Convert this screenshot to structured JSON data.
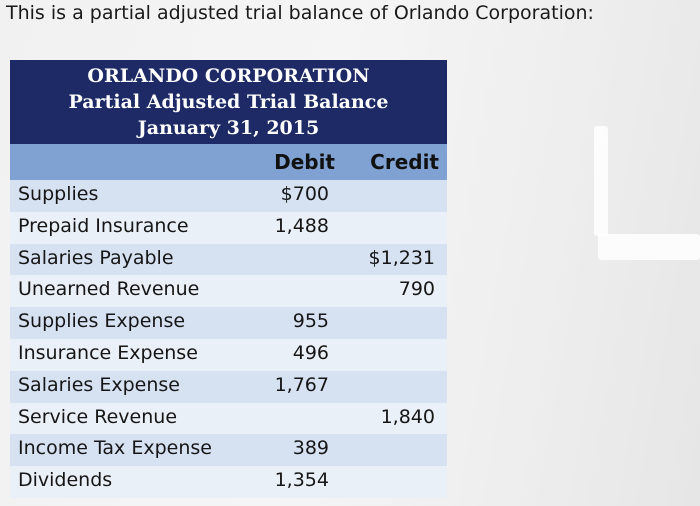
{
  "intro_text": "This is a partial adjusted trial balance of Orlando Corporation:",
  "heading": {
    "company": "ORLANDO CORPORATION",
    "title": "Partial Adjusted Trial Balance",
    "date": "January 31, 2015"
  },
  "columns": {
    "debit": "Debit",
    "credit": "Credit"
  },
  "rows": [
    {
      "account": "Supplies",
      "debit": "$700",
      "credit": ""
    },
    {
      "account": "Prepaid Insurance",
      "debit": "1,488",
      "credit": ""
    },
    {
      "account": "Salaries Payable",
      "debit": "",
      "credit": "$1,231"
    },
    {
      "account": "Unearned Revenue",
      "debit": "",
      "credit": "790"
    },
    {
      "account": "Supplies Expense",
      "debit": "955",
      "credit": ""
    },
    {
      "account": "Insurance Expense",
      "debit": "496",
      "credit": ""
    },
    {
      "account": "Salaries Expense",
      "debit": "1,767",
      "credit": ""
    },
    {
      "account": "Service Revenue",
      "debit": "",
      "credit": "1,840"
    },
    {
      "account": "Income Tax Expense",
      "debit": "389",
      "credit": ""
    },
    {
      "account": "Dividends",
      "debit": "1,354",
      "credit": ""
    }
  ],
  "colors": {
    "header_bg": "#1d2a66",
    "column_header_bg": "#7fa2d3",
    "row_bg_a": "#d6e1f1",
    "row_bg_b": "#eaf0f8"
  }
}
